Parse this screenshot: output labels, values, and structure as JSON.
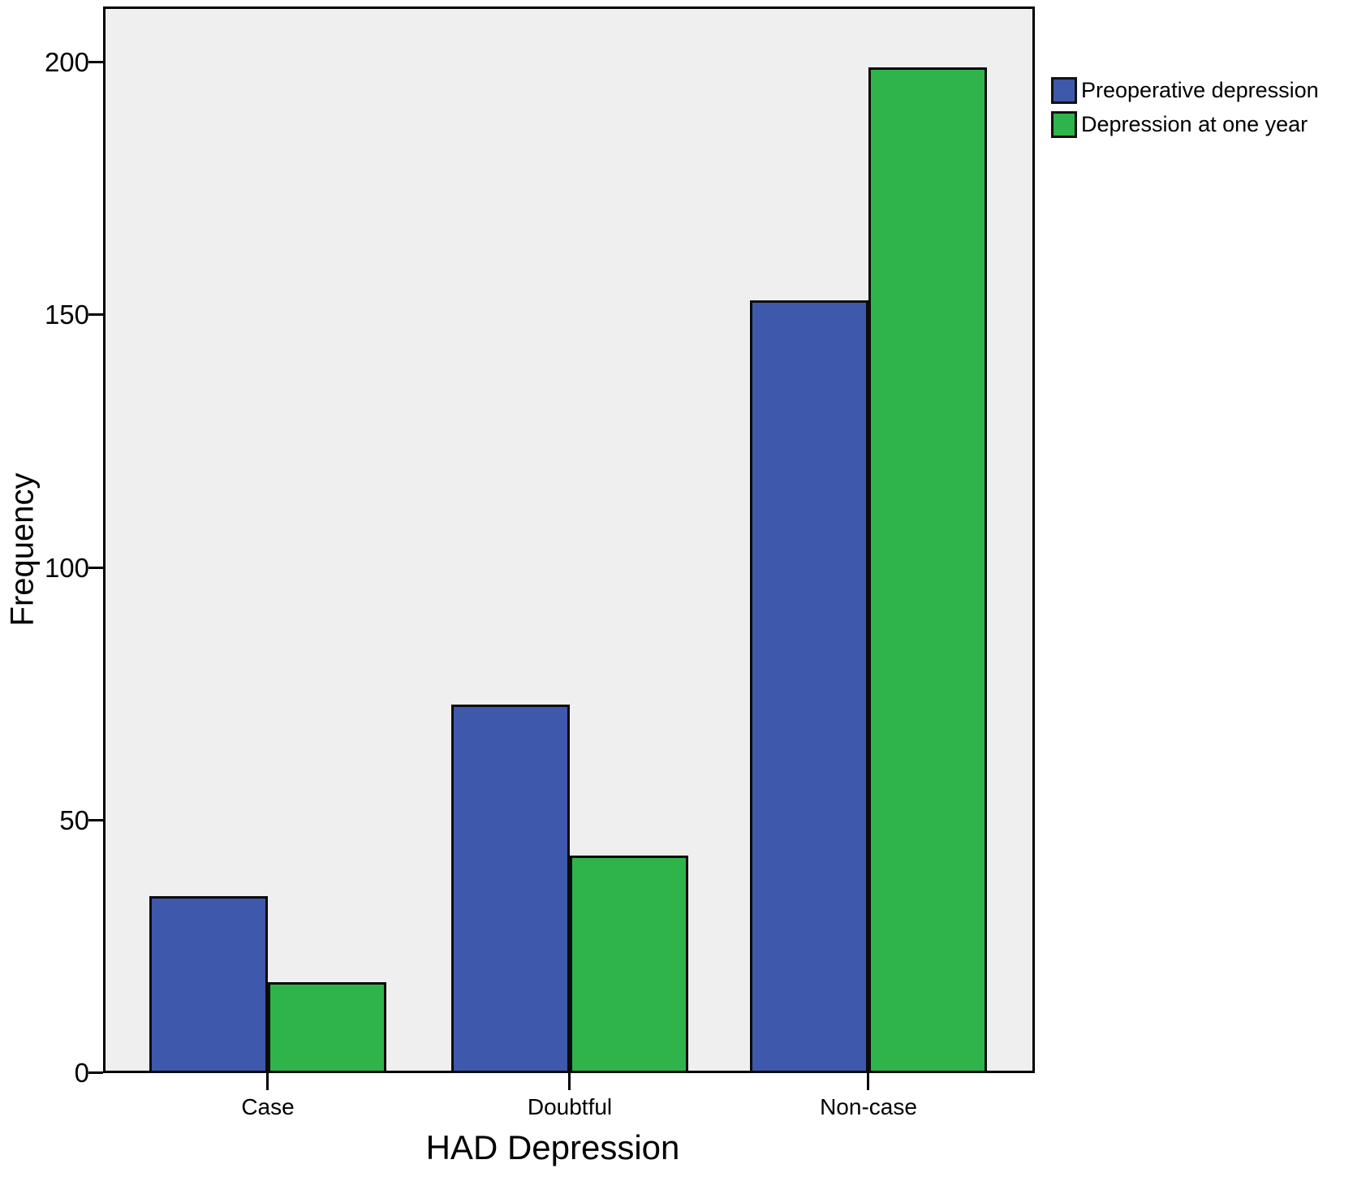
{
  "chart_data": {
    "type": "bar",
    "title": "",
    "xlabel": "HAD Depression",
    "ylabel": "Frequency",
    "categories": [
      "Case",
      "Doubtful",
      "Non-case"
    ],
    "series": [
      {
        "name": "Preoperative depression",
        "color": "#3E58AB",
        "values": [
          35,
          73,
          153
        ]
      },
      {
        "name": "Depression at one year",
        "color": "#2FB34B",
        "values": [
          18,
          43,
          199
        ]
      }
    ],
    "y_ticks": [
      0,
      50,
      100,
      150,
      200
    ],
    "ylim": [
      0,
      211
    ],
    "grid": false,
    "legend_position": "top-right-outside",
    "plot_background": "#EFEFEF",
    "axis_color": "#000000"
  }
}
